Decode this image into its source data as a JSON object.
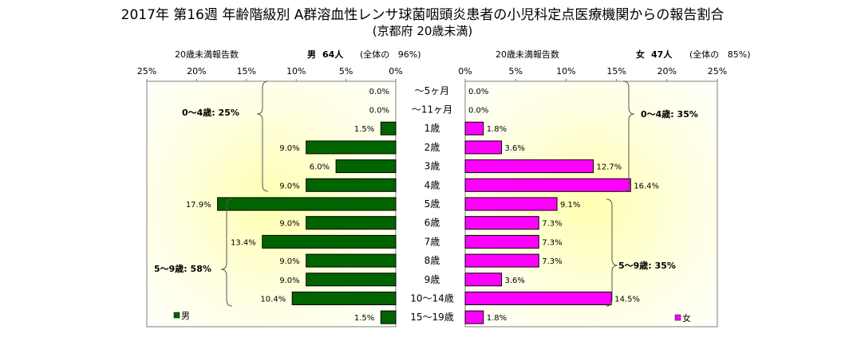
{
  "title": "2017年 第16週 年齢階級別 A群溶血性レンサ球菌咽頭炎患者の小児科定点医療機関からの報告割合",
  "subtitle": "(京都府 20歳未満)",
  "left_header": {
    "caption": "20歳未満報告数",
    "sex": "男",
    "count": "64人",
    "share": "(全体の   96%)"
  },
  "right_header": {
    "caption": "20歳未満報告数",
    "sex": "女",
    "count": "47人",
    "share": "(全体の   85%)"
  },
  "chart_data": {
    "type": "bar",
    "orientation": "horizontal-butterfly",
    "categories": [
      "~5ヶ月",
      "~11ヶ月",
      "1歳",
      "2歳",
      "3歳",
      "4歳",
      "5歳",
      "6歳",
      "7歳",
      "8歳",
      "9歳",
      "10~14歳",
      "15~19歳"
    ],
    "category_labels": [
      "～5ヶ月",
      "～11ヶ月",
      "1歳",
      "2歳",
      "3歳",
      "4歳",
      "5歳",
      "6歳",
      "7歳",
      "8歳",
      "9歳",
      "10～14歳",
      "15～19歳"
    ],
    "series": [
      {
        "name": "男",
        "color": "#006400",
        "values": [
          0.0,
          0.0,
          1.5,
          9.0,
          6.0,
          9.0,
          17.9,
          9.0,
          13.4,
          9.0,
          9.0,
          10.4,
          1.5
        ],
        "labels": [
          "0.0%",
          "0.0%",
          "1.5%",
          "9.0%",
          "6.0%",
          "9.0%",
          "17.9%",
          "9.0%",
          "13.4%",
          "9.0%",
          "9.0%",
          "10.4%",
          "1.5%"
        ]
      },
      {
        "name": "女",
        "color": "#FF00FF",
        "values": [
          0.0,
          0.0,
          1.8,
          3.6,
          12.7,
          16.4,
          9.1,
          7.3,
          7.3,
          7.3,
          3.6,
          14.5,
          1.8
        ],
        "labels": [
          "0.0%",
          "0.0%",
          "1.8%",
          "3.6%",
          "12.7%",
          "16.4%",
          "9.1%",
          "7.3%",
          "7.3%",
          "7.3%",
          "3.6%",
          "14.5%",
          "1.8%"
        ]
      }
    ],
    "x_ticks": [
      "25%",
      "20%",
      "15%",
      "10%",
      "5%",
      "0%"
    ],
    "x_ticks_right": [
      "0%",
      "5%",
      "10%",
      "15%",
      "20%",
      "25%"
    ],
    "xlim": [
      0,
      25
    ],
    "unit": "%",
    "group_annotations": {
      "left_0_4": "0～4歳: 25%",
      "left_5_9": "5～9歳: 58%",
      "right_0_4": "0～4歳: 35%",
      "right_5_9": "5～9歳: 35%"
    },
    "legend": [
      "男",
      "女"
    ],
    "legend_placement": "bottom-left / bottom-right",
    "background": "yellow radial gradient"
  }
}
